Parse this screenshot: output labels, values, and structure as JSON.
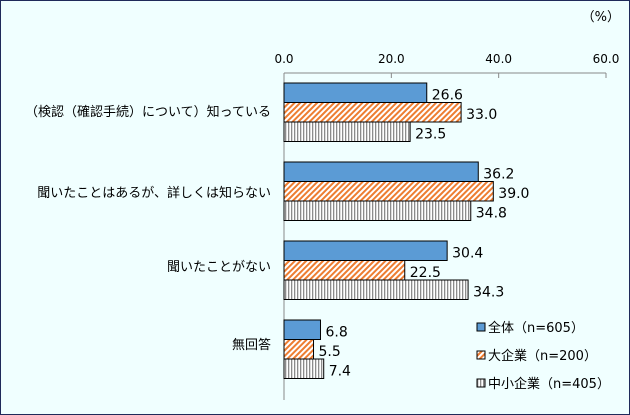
{
  "chart_data": {
    "type": "bar",
    "orientation": "horizontal",
    "unit_label": "（%）",
    "xlim": [
      0,
      60
    ],
    "ticks": [
      "0.0",
      "20.0",
      "40.0",
      "60.0"
    ],
    "tick_values": [
      0,
      20,
      40,
      60
    ],
    "categories": [
      "（検認（確認手続）について）知っている",
      "聞いたことはあるが、詳しくは知らない",
      "聞いたことがない",
      "無回答"
    ],
    "series": [
      {
        "name": "全体（n=605）",
        "values": [
          26.6,
          36.2,
          30.4,
          6.8
        ],
        "color": "#5b9bd5",
        "pattern": "solid"
      },
      {
        "name": "大企業（n=200）",
        "values": [
          33.0,
          39.0,
          22.5,
          5.5
        ],
        "color": "#ed7d31",
        "pattern": "diagonal"
      },
      {
        "name": "中小企業（n=405）",
        "values": [
          23.5,
          34.8,
          34.3,
          7.4
        ],
        "color": "#a5a5a5",
        "pattern": "vertical"
      }
    ],
    "legend_position": "bottom-right",
    "background": "#f0ffff"
  }
}
